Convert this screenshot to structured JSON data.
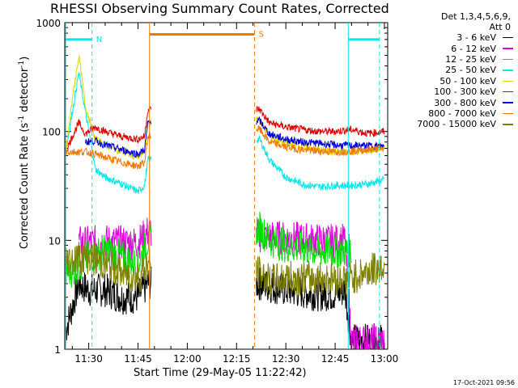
{
  "chart_data": {
    "type": "line",
    "title": "RHESSI Observing Summary Count Rates, Corrected",
    "xlabel": "Start Time (29-May-05 11:22:42)",
    "ylabel_parts": [
      "Corrected Count Rate (s",
      "-1",
      " detector",
      "-1",
      ")"
    ],
    "yscale": "log",
    "ylim": [
      1,
      1000
    ],
    "xlim": [
      "11:22:42",
      "13:01:00"
    ],
    "x_tick_labels": [
      "11:30",
      "11:45",
      "12:00",
      "12:15",
      "12:30",
      "12:45",
      "13:00"
    ],
    "y_tick_labels": [
      "1",
      "10",
      "100",
      "1000"
    ],
    "legend_header": [
      "Det 1,3,4,5,6,9,",
      "Att 0"
    ],
    "legend": [
      {
        "label": "3 - 6 keV",
        "color": "#000000"
      },
      {
        "label": "6 - 12 keV",
        "color": "#e000e0"
      },
      {
        "label": "12 - 25 keV",
        "color": "#00e000"
      },
      {
        "label": "25 - 50 keV",
        "color": "#00e8e8"
      },
      {
        "label": "50 - 100 keV",
        "color": "#d8d800"
      },
      {
        "label": "100 - 300 keV",
        "color": "#e00000"
      },
      {
        "label": "300 - 800 keV",
        "color": "#0000e0"
      },
      {
        "label": "800 - 7000 keV",
        "color": "#f07800"
      },
      {
        "label": "7000 - 15000 keV",
        "color": "#808000"
      }
    ],
    "markers": [
      {
        "label": "N",
        "color": "#00e8e8",
        "start": "11:23:00",
        "end": "11:31:00",
        "y": 700
      },
      {
        "label": "S",
        "color": "#f07800",
        "start": "11:48:30",
        "end": "12:20:30",
        "y": 780
      },
      {
        "label": "",
        "color": "#00e8e8",
        "start": "12:49:00",
        "end": "12:58:30",
        "y": 700
      }
    ],
    "gap": [
      "11:49:00",
      "12:21:00"
    ],
    "series": [
      {
        "color": "#000000",
        "x": [
          "11:23",
          "11:27",
          "11:30",
          "11:35",
          "11:40",
          "11:45",
          "11:48",
          "12:22",
          "12:30",
          "12:40",
          "12:45",
          "12:48",
          "12:50",
          "12:55",
          "13:00"
        ],
        "y": [
          1.5,
          4,
          3.5,
          3.5,
          3,
          3,
          4,
          4,
          3.5,
          3.2,
          3.2,
          3.5,
          1.2,
          1.2,
          1.2
        ]
      },
      {
        "color": "#e000e0",
        "x": [
          "11:27",
          "11:30",
          "11:35",
          "11:40",
          "11:45",
          "11:48",
          "12:22",
          "12:30",
          "12:40",
          "12:45",
          "12:48",
          "12:50",
          "13:00"
        ],
        "y": [
          9.5,
          9.5,
          9.8,
          9.5,
          9.5,
          12,
          11,
          10.5,
          10,
          9.8,
          10,
          1.2,
          1.2
        ]
      },
      {
        "color": "#00e000",
        "x": [
          "11:23",
          "11:26",
          "11:30",
          "11:35",
          "11:40",
          "11:45",
          "11:48",
          "12:22",
          "12:25",
          "12:30",
          "12:40",
          "12:45",
          "12:50"
        ],
        "y": [
          5,
          5.5,
          7,
          8,
          7,
          6,
          10,
          13,
          10,
          9,
          8,
          8,
          8
        ]
      },
      {
        "color": "#00e8e8",
        "x": [
          "11:23",
          "11:25",
          "11:27",
          "11:29",
          "11:32",
          "11:35",
          "11:40",
          "11:45",
          "11:47",
          "11:48",
          "12:22",
          "12:25",
          "12:30",
          "12:35",
          "12:40",
          "12:45",
          "12:50",
          "12:55",
          "13:00"
        ],
        "y": [
          65,
          150,
          350,
          150,
          45,
          38,
          33,
          28,
          32,
          55,
          85,
          55,
          38,
          33,
          31,
          32,
          32,
          33,
          36
        ]
      },
      {
        "color": "#d8d800",
        "x": [
          "11:23",
          "11:25",
          "11:27",
          "11:29",
          "11:32",
          "11:35",
          "11:40",
          "11:45",
          "11:47",
          "11:48",
          "12:22",
          "12:25",
          "12:30",
          "12:35",
          "12:40",
          "12:45",
          "12:50",
          "12:55",
          "13:00"
        ],
        "y": [
          62,
          200,
          500,
          170,
          85,
          75,
          65,
          58,
          65,
          120,
          130,
          90,
          78,
          72,
          68,
          65,
          65,
          67,
          70
        ]
      },
      {
        "color": "#e00000",
        "x": [
          "11:23",
          "11:25",
          "11:27",
          "11:29",
          "11:32",
          "11:35",
          "11:40",
          "11:45",
          "11:47",
          "11:48",
          "12:22",
          "12:25",
          "12:30",
          "12:35",
          "12:40",
          "12:45",
          "12:50",
          "12:55",
          "13:00"
        ],
        "y": [
          65,
          90,
          120,
          95,
          110,
          100,
          90,
          85,
          90,
          160,
          160,
          120,
          110,
          104,
          100,
          100,
          104,
          96,
          100
        ]
      },
      {
        "color": "#0000e0",
        "x": [
          "11:29",
          "11:32",
          "11:35",
          "11:40",
          "11:45",
          "11:47",
          "11:48",
          "12:22",
          "12:25",
          "12:30",
          "12:35",
          "12:40",
          "12:45",
          "12:50",
          "12:55",
          "13:00"
        ],
        "y": [
          80,
          82,
          75,
          68,
          62,
          68,
          120,
          125,
          95,
          85,
          80,
          78,
          75,
          74,
          74,
          73
        ]
      },
      {
        "color": "#f07800",
        "x": [
          "11:23",
          "11:25",
          "11:27",
          "11:29",
          "11:32",
          "11:35",
          "11:40",
          "11:45",
          "11:47",
          "11:48",
          "12:22",
          "12:25",
          "12:30",
          "12:35",
          "12:40",
          "12:45",
          "12:50",
          "12:55",
          "13:00"
        ],
        "y": [
          65,
          65,
          65,
          65,
          62,
          58,
          52,
          48,
          52,
          90,
          105,
          80,
          72,
          68,
          66,
          65,
          66,
          68,
          70
        ]
      },
      {
        "color": "#808000",
        "x": [
          "11:23",
          "11:27",
          "11:30",
          "11:35",
          "11:40",
          "11:45",
          "11:48",
          "12:22",
          "12:25",
          "12:30",
          "12:40",
          "12:45",
          "12:48",
          "12:50",
          "12:55",
          "13:00"
        ],
        "y": [
          6.5,
          7,
          7,
          6,
          5,
          4.5,
          6,
          5,
          4.2,
          4.5,
          4.5,
          4.5,
          4.3,
          4.5,
          5.2,
          5.8
        ]
      }
    ]
  },
  "footer": "17-Oct-2021 09:56"
}
